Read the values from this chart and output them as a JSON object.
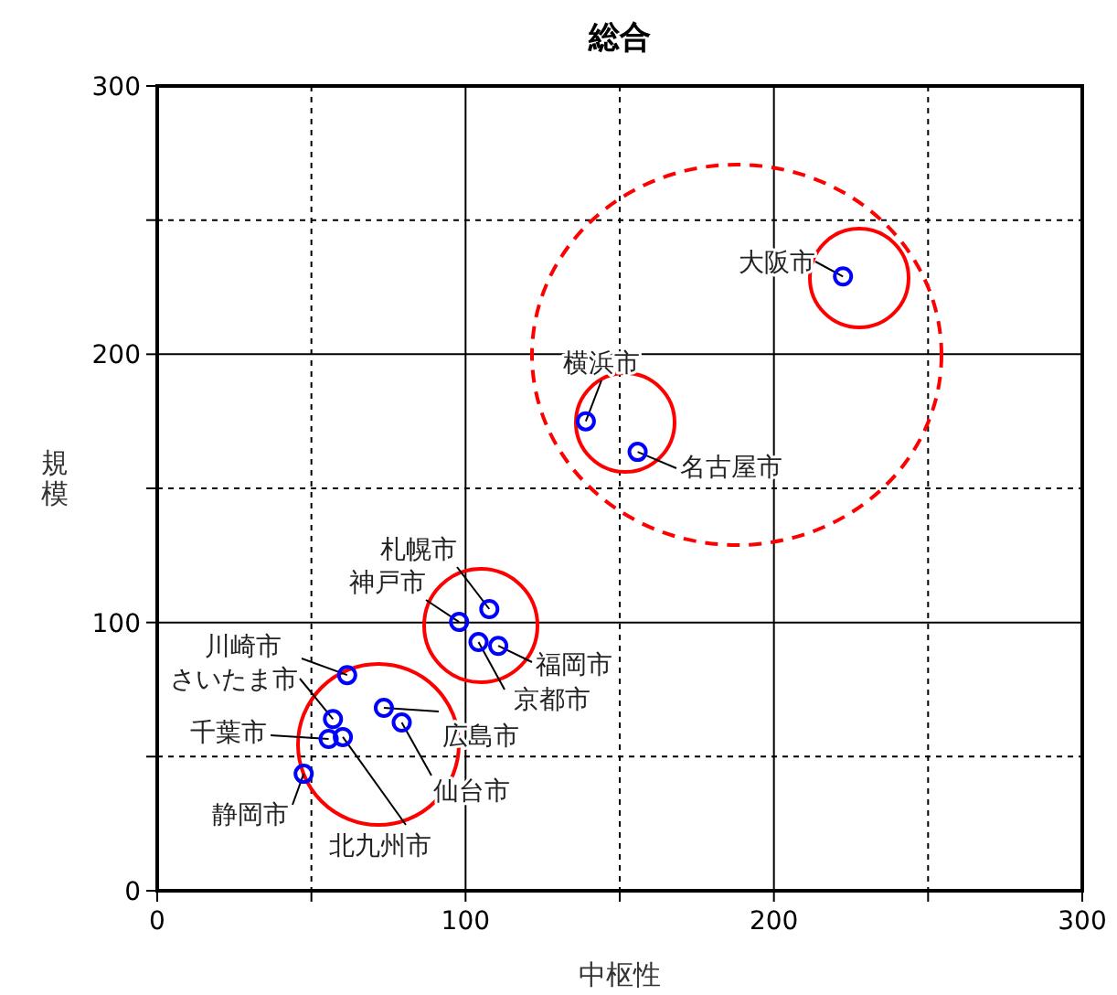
{
  "chart_data": {
    "type": "scatter",
    "title": "総合",
    "xlabel": "中枢性",
    "ylabel": "規模",
    "xlim": [
      0,
      300
    ],
    "ylim": [
      0,
      300
    ],
    "xticks": [
      0,
      {
        "value": 50,
        "label": null
      },
      100,
      {
        "value": 150,
        "label": null
      },
      200,
      {
        "value": 250,
        "label": null
      },
      300
    ],
    "yticks": [
      0,
      {
        "value": 50,
        "label": null
      },
      100,
      {
        "value": 150,
        "label": null
      },
      200,
      {
        "value": 250,
        "label": null
      },
      300
    ],
    "grid": true,
    "marker": "circle",
    "series": [
      {
        "color": "#0000ff",
        "x": [
          222.4,
          139,
          155.8,
          107.7,
          97.9,
          110.6,
          104.2,
          61.6,
          57,
          55.6,
          60.2,
          47.5,
          73.5,
          79.3
        ],
        "values": [
          229,
          175,
          163.6,
          105,
          100.2,
          91.3,
          92.7,
          80.4,
          64,
          56.6,
          57.3,
          43.6,
          68.2,
          62.7
        ]
      }
    ],
    "annotations": [
      {
        "text": "大阪市",
        "x": 222.4,
        "y": 229
      },
      {
        "text": "横浜市",
        "x": 139,
        "y": 175
      },
      {
        "text": "名古屋市",
        "x": 155.8,
        "y": 163.6
      },
      {
        "text": "札幌市",
        "x": 107.7,
        "y": 105
      },
      {
        "text": "神戸市",
        "x": 97.9,
        "y": 100.2
      },
      {
        "text": "福岡市",
        "x": 110.6,
        "y": 91.3
      },
      {
        "text": "京都市",
        "x": 104.2,
        "y": 92.7
      },
      {
        "text": "川崎市",
        "x": 61.6,
        "y": 80.4
      },
      {
        "text": "さいたま市",
        "x": 57,
        "y": 64
      },
      {
        "text": "千葉市",
        "x": 55.6,
        "y": 56.6
      },
      {
        "text": "北九州市",
        "x": 60.2,
        "y": 57.3
      },
      {
        "text": "静岡市",
        "x": 47.5,
        "y": 43.6
      },
      {
        "text": "広島市",
        "x": 73.5,
        "y": 68.2
      },
      {
        "text": "仙台市",
        "x": 79.3,
        "y": 62.7
      }
    ]
  }
}
